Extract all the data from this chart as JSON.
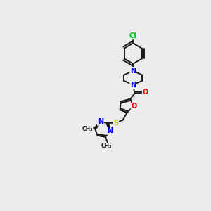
{
  "background_color": "#ececec",
  "bond_color": "#1a1a1a",
  "atom_colors": {
    "N": "#0000ee",
    "O": "#ee0000",
    "S": "#cccc00",
    "Cl": "#00bb00",
    "C": "#1a1a1a"
  },
  "lw": 1.4
}
